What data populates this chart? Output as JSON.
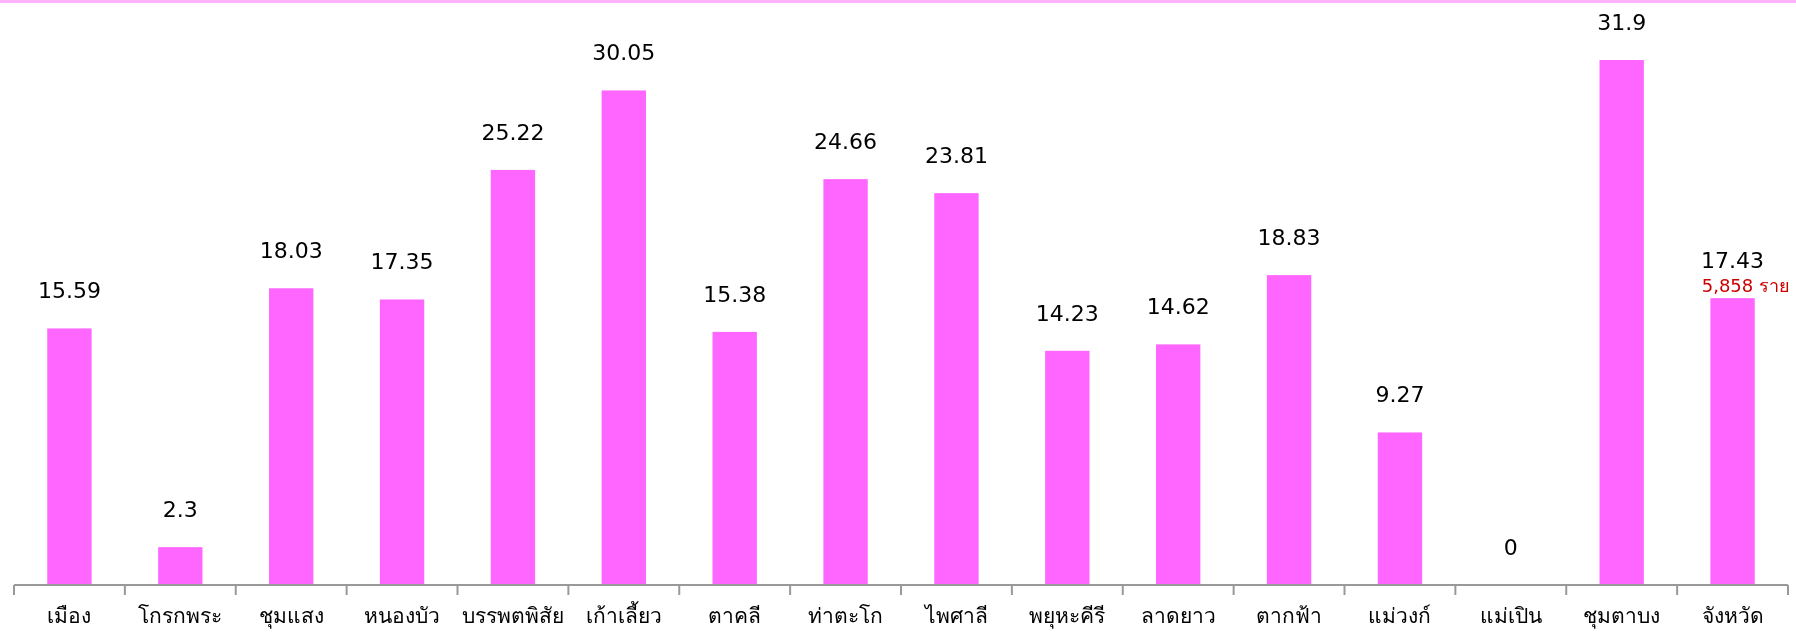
{
  "chart_data": {
    "type": "bar",
    "categories": [
      "เมือง",
      "โกรกพระ",
      "ชุมแสง",
      "หนองบัว",
      "บรรพตพิสัย",
      "เก้าเลี้ยว",
      "ตาคลี",
      "ท่าตะโก",
      "ไพศาลี",
      "พยุหะคีรี",
      "ลาดยาว",
      "ตากฟ้า",
      "แม่วงก์",
      "แม่เปิน",
      "ชุมตาบง",
      "จังหวัด"
    ],
    "values": [
      15.59,
      2.3,
      18.03,
      17.35,
      25.22,
      30.05,
      15.38,
      24.66,
      23.81,
      14.23,
      14.62,
      18.83,
      9.27,
      0,
      31.9,
      17.43
    ],
    "color": "#ff66ff",
    "data_labels": true,
    "annotations": [
      "5,858 ราย"
    ]
  }
}
